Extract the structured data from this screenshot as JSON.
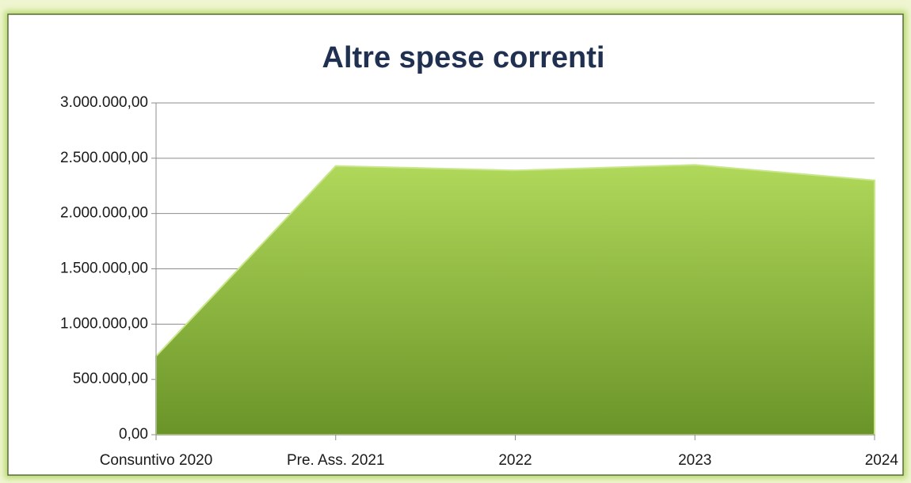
{
  "chart_data": {
    "type": "area",
    "title": "Altre spese correnti",
    "categories": [
      "Consuntivo 2020",
      "Pre. Ass. 2021",
      "2022",
      "2023",
      "2024"
    ],
    "values": [
      710000,
      2430000,
      2390000,
      2440000,
      2300000
    ],
    "color": "#8fbf3a",
    "ylim": [
      0,
      3000000
    ],
    "yticks": [
      {
        "value": 0,
        "label": "0,00"
      },
      {
        "value": 500000,
        "label": "500.000,00"
      },
      {
        "value": 1000000,
        "label": "1.000.000,00"
      },
      {
        "value": 1500000,
        "label": "1.500.000,00"
      },
      {
        "value": 2000000,
        "label": "2.000.000,00"
      },
      {
        "value": 2500000,
        "label": "2.500.000,00"
      },
      {
        "value": 3000000,
        "label": "3.000.000,00"
      }
    ],
    "grid": true
  }
}
